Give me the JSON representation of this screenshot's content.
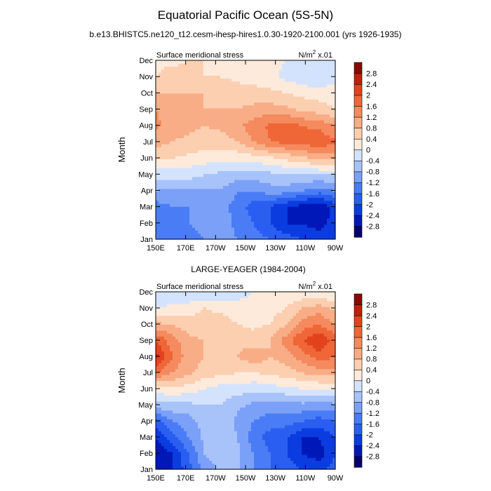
{
  "title": "Equatorial Pacific Ocean (5S-5N)",
  "subtitle": "b.e13.BHISTC5.ne120_t12.cesm-ihesp-hires1.0.30-1920-2100.001 (yrs 1926-1935)",
  "colors": {
    "levels": [
      "#08006a",
      "#0018b8",
      "#0a3ce0",
      "#2a5ef0",
      "#4a7cf5",
      "#7ba0f7",
      "#a8c2fa",
      "#d4e3fd",
      "#fdeadb",
      "#fbcfb0",
      "#f8ad86",
      "#f48a5e",
      "#ef6637",
      "#e2431c",
      "#c11f0a",
      "#8a0a00"
    ]
  },
  "chart_data": [
    {
      "type": "heatmap",
      "panel_title": "",
      "left_label": "Surface meridional stress",
      "units_label": "N/m",
      "units_sup": "2",
      "units_scale": "x.01",
      "ylabel": "Month",
      "x_ticks": [
        "150E",
        "170E",
        "170W",
        "150W",
        "130W",
        "110W",
        "90W"
      ],
      "y_ticks": [
        "Jan",
        "Feb",
        "Mar",
        "Apr",
        "May",
        "Jun",
        "Jul",
        "Aug",
        "Sep",
        "Oct",
        "Nov",
        "Dec"
      ],
      "colorbar_labels": [
        "2.8",
        "2.4",
        "2",
        "1.6",
        "1.2",
        "0.8",
        "0.4",
        "0",
        "-0.4",
        "-0.8",
        "-1.2",
        "-1.6",
        "-2",
        "-2.4",
        "-2.8"
      ],
      "field": [
        [
          -1.2,
          -1.4,
          -1.4,
          -1.2,
          -1.0,
          -1.2,
          -1.4,
          -1.6,
          -1.8,
          -2.0,
          -2.2,
          -2.0
        ],
        [
          -1.6,
          -1.3,
          -1.2,
          -1.0,
          -1.0,
          -1.3,
          -1.6,
          -2.0,
          -2.4,
          -2.4,
          -2.6,
          -2.2
        ],
        [
          -1.4,
          -1.2,
          -1.2,
          -1.2,
          -1.0,
          -1.4,
          -1.8,
          -2.0,
          -2.4,
          -2.6,
          -2.8,
          -2.2
        ],
        [
          -0.8,
          -0.9,
          -0.9,
          -0.9,
          -0.8,
          -1.2,
          -1.2,
          -1.0,
          -1.0,
          -1.2,
          -1.4,
          -1.2
        ],
        [
          -0.2,
          -0.2,
          -0.2,
          -0.4,
          -0.5,
          -0.6,
          -0.6,
          -0.5,
          -0.4,
          -0.4,
          -0.4,
          -0.4
        ],
        [
          0.4,
          0.4,
          0.3,
          0.2,
          0.1,
          0.1,
          0.2,
          0.3,
          0.5,
          0.7,
          0.9,
          0.9
        ],
        [
          1.0,
          0.8,
          0.7,
          0.6,
          0.6,
          0.8,
          1.2,
          1.6,
          1.7,
          1.8,
          1.9,
          1.7
        ],
        [
          1.3,
          1.0,
          0.9,
          0.8,
          0.9,
          1.1,
          1.4,
          1.7,
          1.8,
          1.6,
          1.5,
          1.2
        ],
        [
          1.2,
          1.0,
          0.9,
          0.8,
          0.8,
          0.8,
          0.9,
          1.0,
          0.9,
          0.7,
          0.6,
          0.4
        ],
        [
          0.8,
          0.8,
          0.8,
          0.8,
          0.7,
          0.6,
          0.6,
          0.5,
          0.4,
          0.3,
          0.2,
          0.2
        ],
        [
          0.4,
          0.6,
          0.5,
          0.4,
          0.4,
          0.3,
          0.2,
          0.1,
          -0.1,
          -0.3,
          -0.4,
          -0.1
        ],
        [
          0.3,
          0.3,
          0.4,
          0.4,
          0.3,
          0.3,
          0.2,
          0.1,
          0.0,
          -0.2,
          -0.2,
          0.0
        ]
      ]
    },
    {
      "type": "heatmap",
      "panel_title": "LARGE-YEAGER (1984-2004)",
      "left_label": "Surface meridional stress",
      "units_label": "N/m",
      "units_sup": "2",
      "units_scale": "x.01",
      "ylabel": "Month",
      "x_ticks": [
        "150E",
        "170E",
        "170W",
        "150W",
        "130W",
        "110W",
        "90W"
      ],
      "y_ticks": [
        "Jan",
        "Feb",
        "Mar",
        "Apr",
        "May",
        "Jun",
        "Jul",
        "Aug",
        "Sep",
        "Oct",
        "Nov",
        "Dec"
      ],
      "colorbar_labels": [
        "2.8",
        "2.4",
        "2",
        "1.6",
        "1.2",
        "0.8",
        "0.4",
        "0",
        "-0.4",
        "-0.8",
        "-1.2",
        "-1.6",
        "-2",
        "-2.4",
        "-2.8"
      ],
      "field": [
        [
          -2.8,
          -2.4,
          -1.8,
          -1.0,
          -0.7,
          -0.7,
          -1.2,
          -1.6,
          -1.8,
          -2.0,
          -2.2,
          -1.8
        ],
        [
          -2.8,
          -2.4,
          -1.6,
          -0.8,
          -0.6,
          -0.7,
          -1.2,
          -1.6,
          -2.0,
          -2.4,
          -2.6,
          -2.0
        ],
        [
          -2.4,
          -1.8,
          -1.2,
          -0.7,
          -0.5,
          -0.8,
          -1.4,
          -1.8,
          -2.0,
          -2.4,
          -2.4,
          -2.0
        ],
        [
          -1.8,
          -1.2,
          -1.0,
          -0.6,
          -0.5,
          -0.9,
          -1.2,
          -1.4,
          -1.4,
          -1.6,
          -1.8,
          -1.6
        ],
        [
          -0.6,
          -0.5,
          -0.5,
          -0.4,
          -0.4,
          -0.7,
          -0.9,
          -1.0,
          -1.0,
          -0.9,
          -1.0,
          -0.9
        ],
        [
          0.2,
          0.3,
          0.2,
          0.0,
          -0.2,
          -0.2,
          -0.3,
          -0.2,
          -0.1,
          0.0,
          0.0,
          0.0
        ],
        [
          1.6,
          1.2,
          0.9,
          0.6,
          0.5,
          0.4,
          0.4,
          0.5,
          0.6,
          0.8,
          1.0,
          1.0
        ],
        [
          2.6,
          1.6,
          1.0,
          0.8,
          0.7,
          0.8,
          1.1,
          0.8,
          1.0,
          1.4,
          1.8,
          1.6
        ],
        [
          2.0,
          1.4,
          0.9,
          0.8,
          0.8,
          0.7,
          0.6,
          0.8,
          1.4,
          2.0,
          2.4,
          1.8
        ],
        [
          0.9,
          0.8,
          0.6,
          0.6,
          0.6,
          0.4,
          0.3,
          0.4,
          0.8,
          1.4,
          1.6,
          1.2
        ],
        [
          0.0,
          0.1,
          0.2,
          0.4,
          0.3,
          0.2,
          0.2,
          0.2,
          0.4,
          0.8,
          1.0,
          0.7
        ],
        [
          -0.4,
          -0.3,
          -0.4,
          -0.4,
          -0.3,
          -0.2,
          0.0,
          0.1,
          0.1,
          0.1,
          0.0,
          0.0
        ]
      ]
    }
  ]
}
